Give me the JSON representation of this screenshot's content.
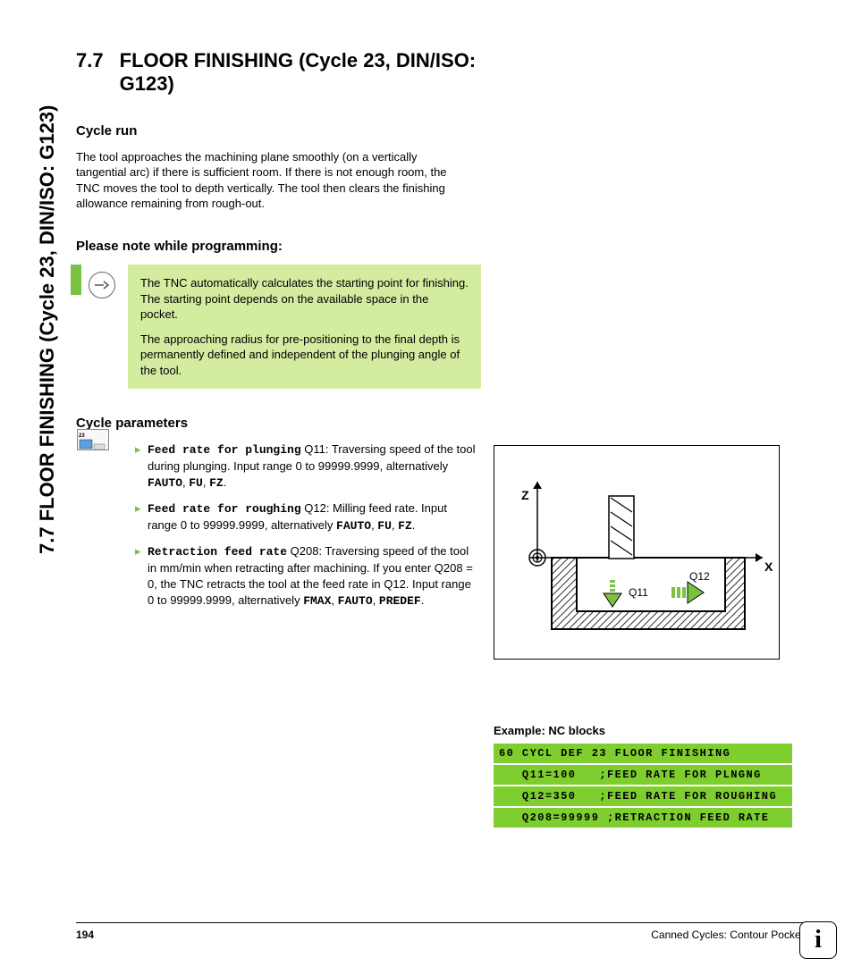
{
  "sidebar_title": "7.7 FLOOR FINISHING (Cycle 23, DIN/ISO: G123)",
  "section": {
    "num": "7.7",
    "title": "FLOOR FINISHING (Cycle 23, DIN/ISO: G123)"
  },
  "cycle_run": {
    "heading": "Cycle run",
    "text": "The tool approaches the machining plane smoothly (on a vertically tangential arc) if there is sufficient room. If there is not enough room, the TNC moves the tool to depth vertically. The tool then clears the finishing allowance remaining from rough-out."
  },
  "note": {
    "heading": "Please note while programming:",
    "p1": "The TNC automatically calculates the starting point for finishing. The starting point depends on the available space in the pocket.",
    "p2": "The approaching radius for pre-positioning to the final depth is permanently defined and independent of the plunging angle of the tool."
  },
  "cycle_params": {
    "heading": "Cycle parameters",
    "items": [
      {
        "name": "Feed rate for plunging",
        "q": "Q11",
        "text": ": Traversing speed of the tool during plunging. Input range 0 to 99999.9999, alternatively ",
        "alts": [
          "FAUTO",
          "FU",
          "FZ"
        ]
      },
      {
        "name": "Feed rate for roughing",
        "q": "Q12",
        "text": ": Milling feed rate. Input range 0 to 99999.9999, alternatively ",
        "alts": [
          "FAUTO",
          "FU",
          "FZ"
        ]
      },
      {
        "name": "Retraction feed rate",
        "q": "Q208",
        "text": ": Traversing speed of the tool in mm/min when retracting after machining. If you enter Q208 = 0, the TNC retracts the tool at the feed rate in Q12. Input range 0 to 99999.9999, alternatively ",
        "alts": [
          "FMAX",
          "FAUTO",
          "PREDEF"
        ]
      }
    ]
  },
  "small_icon_label": "23",
  "figure": {
    "axis_z": "Z",
    "axis_x": "X",
    "q11_label": "Q11",
    "q12_label": "Q12",
    "colors": {
      "arrow_green": "#7ac142",
      "hatch": "#333333",
      "border": "#000000",
      "bg": "#ffffff"
    }
  },
  "nc": {
    "heading": "Example: NC blocks",
    "rows": [
      "60 CYCL DEF 23 FLOOR FINISHING",
      "   Q11=100   ;FEED RATE FOR PLNGNG",
      "   Q12=350   ;FEED RATE FOR ROUGHING",
      "   Q208=99999 ;RETRACTION FEED RATE"
    ],
    "row_bg": "#7fce2f"
  },
  "footer": {
    "page": "194",
    "chapter": "Canned Cycles: Contour Pocket"
  },
  "info_badge": "i"
}
